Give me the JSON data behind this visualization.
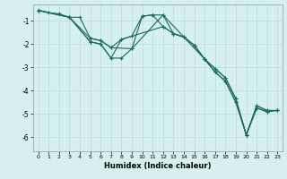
{
  "title": "",
  "xlabel": "Humidex (Indice chaleur)",
  "bg_color": "#d6f0ef",
  "grid_color": "#b8dcdc",
  "line_color": "#1a6b60",
  "xlim": [
    -0.5,
    23.5
  ],
  "ylim": [
    -6.6,
    -0.3
  ],
  "yticks": [
    -6,
    -5,
    -4,
    -3,
    -2,
    -1
  ],
  "xticks": [
    0,
    1,
    2,
    3,
    4,
    5,
    6,
    7,
    8,
    9,
    10,
    11,
    12,
    13,
    14,
    15,
    16,
    17,
    18,
    19,
    20,
    21,
    22,
    23
  ],
  "line1_x": [
    0,
    1,
    2,
    3,
    4,
    5,
    6,
    7,
    8,
    9,
    10,
    11,
    12,
    13,
    14,
    15,
    16,
    17,
    18,
    19,
    20,
    21,
    22,
    23
  ],
  "line1_y": [
    -0.55,
    -0.65,
    -0.7,
    -0.85,
    -0.85,
    -1.75,
    -1.85,
    -2.15,
    -1.8,
    -1.65,
    -0.8,
    -0.75,
    -0.75,
    -1.55,
    -1.7,
    -2.05,
    -2.65,
    -3.05,
    -3.45,
    -4.35,
    -5.9,
    -4.65,
    -4.85,
    -4.85
  ],
  "line2_x": [
    0,
    3,
    5,
    6,
    7,
    8,
    9,
    10,
    11,
    12,
    13,
    14,
    15,
    16,
    17,
    18,
    19,
    20,
    21,
    22,
    23
  ],
  "line2_y": [
    -0.55,
    -0.85,
    -1.9,
    -2.0,
    -2.6,
    -2.6,
    -2.2,
    -0.8,
    -0.75,
    -1.25,
    -1.55,
    -1.7,
    -2.05,
    -2.65,
    -3.2,
    -3.6,
    -4.5,
    -5.9,
    -4.75,
    -4.9,
    -4.85
  ],
  "line3_x": [
    0,
    3,
    5,
    6,
    7,
    8,
    12,
    13,
    14,
    15,
    16,
    17,
    18,
    19,
    20,
    21,
    22,
    23
  ],
  "line3_y": [
    -0.55,
    -0.85,
    -1.9,
    -2.0,
    -2.6,
    -1.8,
    -1.25,
    -1.55,
    -1.7,
    -2.05,
    -2.65,
    -3.2,
    -3.6,
    -4.5,
    -5.9,
    -4.75,
    -4.9,
    -4.85
  ],
  "line4_x": [
    0,
    3,
    5,
    6,
    7,
    9,
    12,
    16,
    17,
    18,
    19,
    20,
    21,
    22,
    23
  ],
  "line4_y": [
    -0.55,
    -0.85,
    -1.75,
    -1.85,
    -2.15,
    -2.2,
    -0.75,
    -2.65,
    -3.05,
    -3.45,
    -4.35,
    -5.9,
    -4.65,
    -4.85,
    -4.85
  ]
}
